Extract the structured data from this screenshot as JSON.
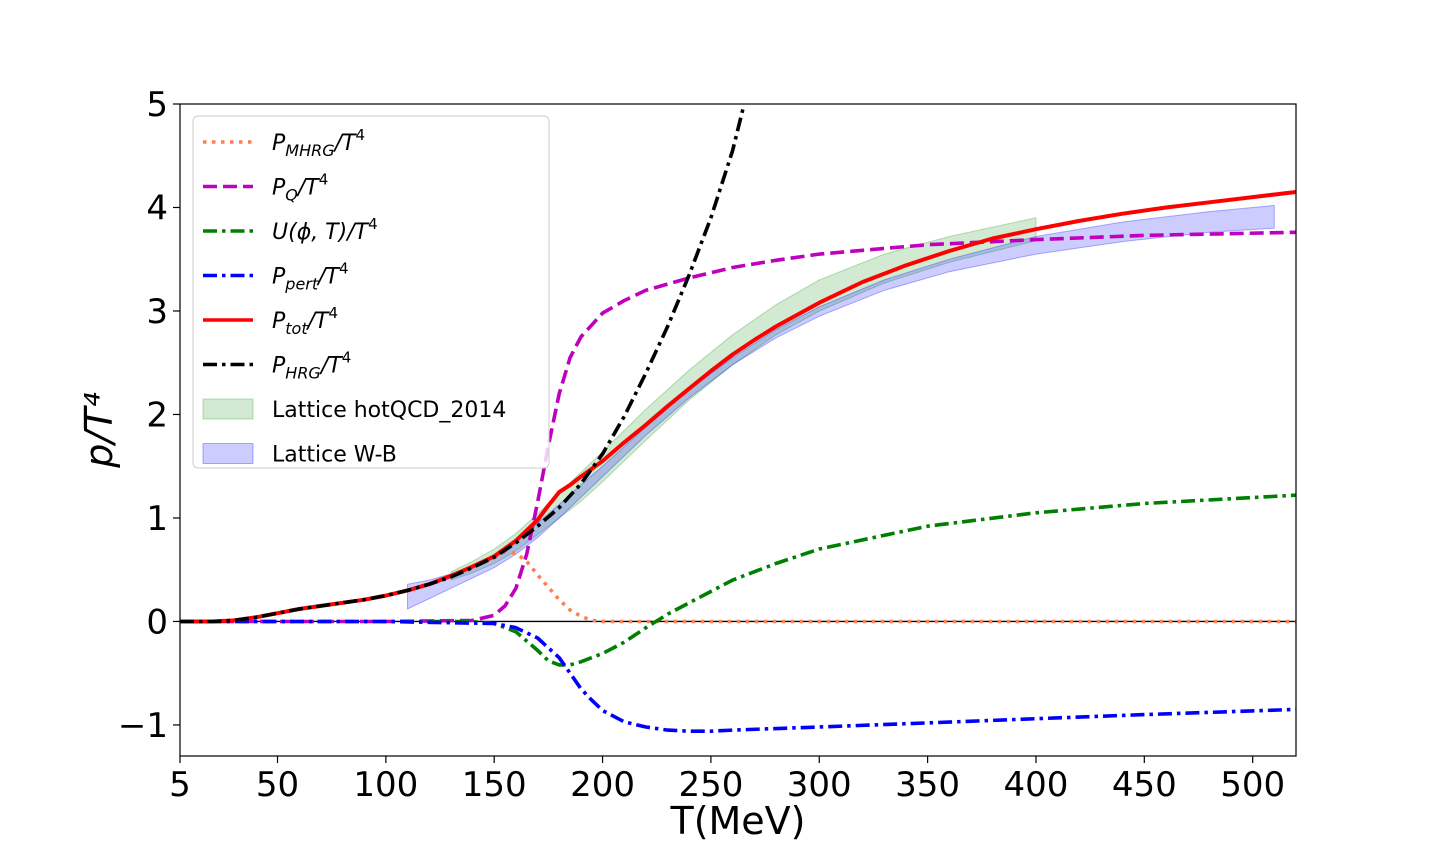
{
  "chart_data": {
    "type": "line",
    "title": "",
    "xlabel": "T(MeV)",
    "ylabel": "p/T⁴",
    "xlim": [
      5,
      520
    ],
    "ylim": [
      -1.3,
      5.0
    ],
    "xticks": [
      5,
      50,
      100,
      150,
      200,
      250,
      300,
      350,
      400,
      450,
      500
    ],
    "yticks": [
      -1,
      0,
      1,
      2,
      3,
      4,
      5
    ],
    "xtick_labels": [
      "5",
      "50",
      "100",
      "150",
      "200",
      "250",
      "300",
      "350",
      "400",
      "450",
      "500"
    ],
    "ytick_labels": [
      "−1",
      "0",
      "1",
      "2",
      "3",
      "4",
      "5"
    ],
    "grid": false,
    "zero_line": 0,
    "legend_position": "top-left",
    "series": [
      {
        "name": "P_MHRG/T^4",
        "label_main": "P",
        "label_sub": "MHRG",
        "label_rest": "/T",
        "label_sup": "4",
        "color": "#ff7f50",
        "style": "dotted",
        "x": [
          5,
          20,
          30,
          40,
          50,
          60,
          70,
          80,
          90,
          100,
          110,
          120,
          130,
          140,
          150,
          155,
          160,
          165,
          170,
          175,
          180,
          185,
          190,
          195,
          200,
          250,
          300,
          400,
          520
        ],
        "y": [
          0,
          0,
          0.01,
          0.04,
          0.08,
          0.12,
          0.15,
          0.18,
          0.21,
          0.25,
          0.3,
          0.36,
          0.44,
          0.53,
          0.63,
          0.67,
          0.66,
          0.58,
          0.45,
          0.33,
          0.21,
          0.11,
          0.05,
          0.01,
          0,
          0,
          0,
          0,
          0
        ]
      },
      {
        "name": "P_Q/T^4",
        "label_main": "P",
        "label_sub": "Q",
        "label_rest": "/T",
        "label_sup": "4",
        "color": "#bf00bf",
        "style": "dashed",
        "x": [
          5,
          100,
          140,
          150,
          155,
          160,
          165,
          170,
          175,
          180,
          185,
          190,
          200,
          210,
          220,
          240,
          260,
          280,
          300,
          350,
          400,
          450,
          520
        ],
        "y": [
          0,
          0,
          0.01,
          0.06,
          0.15,
          0.32,
          0.65,
          1.15,
          1.7,
          2.2,
          2.55,
          2.75,
          2.98,
          3.1,
          3.2,
          3.32,
          3.42,
          3.49,
          3.55,
          3.64,
          3.69,
          3.73,
          3.76
        ]
      },
      {
        "name": "U(phi,T)/T^4",
        "label_main": "U(",
        "label_sub": "",
        "label_rest": "ϕ, T)/T",
        "label_sup": "4",
        "color": "#008000",
        "style": "dashdot",
        "x": [
          5,
          100,
          140,
          150,
          160,
          170,
          175,
          180,
          185,
          190,
          200,
          210,
          220,
          230,
          240,
          260,
          280,
          300,
          350,
          400,
          450,
          520
        ],
        "y": [
          0,
          0,
          0,
          -0.02,
          -0.1,
          -0.28,
          -0.38,
          -0.42,
          -0.42,
          -0.39,
          -0.31,
          -0.2,
          -0.06,
          0.07,
          0.18,
          0.4,
          0.56,
          0.7,
          0.92,
          1.05,
          1.14,
          1.22
        ]
      },
      {
        "name": "P_pert/T^4",
        "label_main": "P",
        "label_sub": "pert",
        "label_rest": "/T",
        "label_sup": "4",
        "color": "#0000ff",
        "style": "dashdot",
        "x": [
          5,
          100,
          150,
          160,
          170,
          180,
          185,
          190,
          195,
          200,
          210,
          220,
          230,
          240,
          250,
          260,
          300,
          350,
          400,
          450,
          520
        ],
        "y": [
          0,
          0,
          -0.02,
          -0.06,
          -0.16,
          -0.35,
          -0.5,
          -0.65,
          -0.76,
          -0.86,
          -0.97,
          -1.02,
          -1.05,
          -1.06,
          -1.06,
          -1.05,
          -1.02,
          -0.98,
          -0.94,
          -0.9,
          -0.85
        ]
      },
      {
        "name": "P_tot/T^4",
        "label_main": "P",
        "label_sub": "tot",
        "label_rest": "/T",
        "label_sup": "4",
        "color": "#ff0000",
        "style": "solid",
        "x": [
          5,
          20,
          30,
          40,
          50,
          60,
          70,
          80,
          90,
          100,
          110,
          120,
          130,
          140,
          150,
          160,
          165,
          170,
          175,
          180,
          185,
          190,
          200,
          210,
          220,
          230,
          240,
          250,
          260,
          270,
          280,
          300,
          320,
          340,
          360,
          380,
          400,
          420,
          440,
          460,
          480,
          500,
          520
        ],
        "y": [
          0,
          0,
          0.01,
          0.04,
          0.08,
          0.12,
          0.15,
          0.18,
          0.21,
          0.25,
          0.3,
          0.36,
          0.44,
          0.53,
          0.63,
          0.78,
          0.88,
          0.98,
          1.12,
          1.25,
          1.32,
          1.4,
          1.55,
          1.73,
          1.9,
          2.08,
          2.25,
          2.42,
          2.58,
          2.72,
          2.85,
          3.08,
          3.28,
          3.44,
          3.58,
          3.7,
          3.79,
          3.87,
          3.94,
          4.0,
          4.05,
          4.1,
          4.15
        ]
      },
      {
        "name": "P_HRG/T^4",
        "label_main": "P",
        "label_sub": "HRG",
        "label_rest": "/T",
        "label_sup": "4",
        "color": "#000000",
        "style": "dashdot",
        "x": [
          5,
          20,
          30,
          40,
          50,
          60,
          70,
          80,
          90,
          100,
          110,
          120,
          130,
          140,
          150,
          160,
          170,
          180,
          190,
          200,
          210,
          220,
          230,
          240,
          250,
          260,
          265
        ],
        "y": [
          0,
          0,
          0.01,
          0.04,
          0.08,
          0.12,
          0.15,
          0.18,
          0.21,
          0.25,
          0.3,
          0.36,
          0.43,
          0.52,
          0.62,
          0.76,
          0.92,
          1.1,
          1.33,
          1.62,
          1.98,
          2.4,
          2.85,
          3.35,
          3.9,
          4.55,
          4.97
        ]
      }
    ],
    "bands": [
      {
        "name": "Lattice hotQCD_2014",
        "color": "#2ca02c",
        "opacity": 0.22,
        "x": [
          130,
          140,
          150,
          160,
          170,
          180,
          190,
          200,
          220,
          240,
          260,
          280,
          300,
          330,
          360,
          400
        ],
        "lower": [
          0.4,
          0.47,
          0.56,
          0.68,
          0.84,
          1.0,
          1.16,
          1.35,
          1.75,
          2.14,
          2.48,
          2.77,
          3.0,
          3.27,
          3.47,
          3.68
        ],
        "upper": [
          0.48,
          0.58,
          0.7,
          0.85,
          1.04,
          1.24,
          1.44,
          1.64,
          2.05,
          2.43,
          2.77,
          3.06,
          3.3,
          3.55,
          3.72,
          3.9
        ]
      },
      {
        "name": "Lattice W-B",
        "color": "#0000ff",
        "opacity": 0.2,
        "x": [
          110,
          120,
          130,
          140,
          150,
          160,
          170,
          180,
          190,
          200,
          220,
          240,
          260,
          280,
          300,
          330,
          360,
          400,
          440,
          480,
          510
        ],
        "lower": [
          0.12,
          0.22,
          0.32,
          0.42,
          0.52,
          0.65,
          0.81,
          1.0,
          1.2,
          1.4,
          1.8,
          2.16,
          2.48,
          2.74,
          2.95,
          3.2,
          3.38,
          3.55,
          3.67,
          3.76,
          3.8
        ],
        "upper": [
          0.36,
          0.4,
          0.46,
          0.54,
          0.64,
          0.78,
          0.95,
          1.13,
          1.32,
          1.5,
          1.88,
          2.24,
          2.55,
          2.82,
          3.04,
          3.3,
          3.5,
          3.72,
          3.86,
          3.96,
          4.02
        ]
      }
    ]
  }
}
